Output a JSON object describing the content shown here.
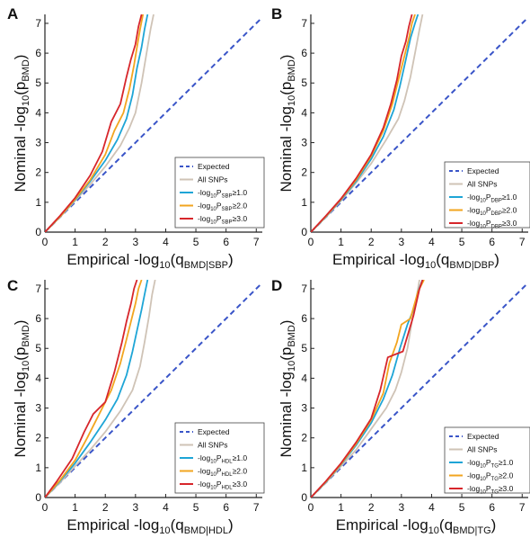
{
  "figure": {
    "background": "#ffffff"
  },
  "series_styles": {
    "Expected": {
      "color": "#3a55c8",
      "dash": true
    },
    "All SNPs": {
      "color": "#cfc3b6"
    },
    "t1": {
      "color": "#1ea5d6"
    },
    "t2": {
      "color": "#f2a51f"
    },
    "t3": {
      "color": "#d7262b"
    }
  },
  "chart_data": [
    {
      "panel": "A",
      "type": "line",
      "xlim": [
        0,
        7.2
      ],
      "ylim": [
        0,
        7.3
      ],
      "xticks": [
        0,
        1,
        2,
        3,
        4,
        5,
        6,
        7
      ],
      "yticks": [
        0,
        1,
        2,
        3,
        4,
        5,
        6,
        7
      ],
      "ylabel": {
        "pre": "Nominal -log",
        "sub1": "10",
        "mid": "(p",
        "sub2": "BMD",
        "post": ")"
      },
      "xlabel": {
        "pre": "Empirical -log",
        "sub1": "10",
        "mid": "(q",
        "sub2": "BMD|SBP",
        "post": ")"
      },
      "legend": {
        "position": "lower-right",
        "items": [
          {
            "key": "Expected",
            "text": "Expected"
          },
          {
            "key": "All SNPs",
            "text": "All SNPs"
          },
          {
            "key": "t1",
            "pre": "-log",
            "sub1": "10",
            "mid": "P",
            "sub2": "SBP",
            "post": "≥1.0"
          },
          {
            "key": "t2",
            "pre": "-log",
            "sub1": "10",
            "mid": "P",
            "sub2": "SBP",
            "post": "≥2.0"
          },
          {
            "key": "t3",
            "pre": "-log",
            "sub1": "10",
            "mid": "P",
            "sub2": "SBP",
            "post": "≥3.0"
          }
        ]
      },
      "series": [
        {
          "key": "Expected",
          "x": [
            0,
            7.2
          ],
          "y": [
            0,
            7.2
          ]
        },
        {
          "key": "All SNPs",
          "x": [
            0,
            0.5,
            1.0,
            1.5,
            2.0,
            2.5,
            2.8,
            3.0,
            3.2,
            3.35,
            3.5,
            3.6
          ],
          "y": [
            0,
            0.5,
            1.05,
            1.6,
            2.2,
            2.9,
            3.5,
            4.0,
            5.0,
            5.9,
            6.8,
            7.3
          ]
        },
        {
          "key": "t1",
          "x": [
            0,
            0.5,
            1.0,
            1.5,
            2.0,
            2.4,
            2.7,
            2.9,
            3.05,
            3.2,
            3.3,
            3.4
          ],
          "y": [
            0,
            0.52,
            1.08,
            1.7,
            2.4,
            3.1,
            3.8,
            4.6,
            5.5,
            6.2,
            6.8,
            7.3
          ]
        },
        {
          "key": "t2",
          "x": [
            0,
            0.5,
            1.0,
            1.5,
            2.0,
            2.3,
            2.6,
            2.8,
            2.95,
            3.05,
            3.15,
            3.25
          ],
          "y": [
            0,
            0.52,
            1.1,
            1.75,
            2.6,
            3.4,
            4.0,
            4.8,
            5.6,
            6.2,
            6.8,
            7.3
          ]
        },
        {
          "key": "t3",
          "x": [
            0,
            0.5,
            1.0,
            1.5,
            1.9,
            2.2,
            2.5,
            2.7,
            2.85,
            3.0,
            3.1,
            3.2
          ],
          "y": [
            0,
            0.55,
            1.15,
            1.9,
            2.7,
            3.7,
            4.3,
            5.2,
            5.8,
            6.3,
            6.9,
            7.3
          ]
        }
      ]
    },
    {
      "panel": "B",
      "type": "line",
      "xlim": [
        0,
        7.2
      ],
      "ylim": [
        0,
        7.3
      ],
      "xticks": [
        0,
        1,
        2,
        3,
        4,
        5,
        6,
        7
      ],
      "yticks": [
        0,
        1,
        2,
        3,
        4,
        5,
        6,
        7
      ],
      "ylabel": {
        "pre": "Nominal -log",
        "sub1": "10",
        "mid": "(p",
        "sub2": "BMD",
        "post": ")"
      },
      "xlabel": {
        "pre": "Empirical -log",
        "sub1": "10",
        "mid": "(q",
        "sub2": "BMD|DBP",
        "post": ")"
      },
      "legend": {
        "position": "lower-right",
        "items": [
          {
            "key": "Expected",
            "text": "Expected"
          },
          {
            "key": "All SNPs",
            "text": "All SNPs"
          },
          {
            "key": "t1",
            "pre": "-log",
            "sub1": "10",
            "mid": "P",
            "sub2": "DBP",
            "post": "≥1.0"
          },
          {
            "key": "t2",
            "pre": "-log",
            "sub1": "10",
            "mid": "P",
            "sub2": "DBP",
            "post": "≥2.0"
          },
          {
            "key": "t3",
            "pre": "-log",
            "sub1": "10",
            "mid": "P",
            "sub2": "DBP",
            "post": "≥3.0"
          }
        ]
      },
      "series": [
        {
          "key": "Expected",
          "x": [
            0,
            7.2
          ],
          "y": [
            0,
            7.2
          ]
        },
        {
          "key": "All SNPs",
          "x": [
            0,
            0.5,
            1.0,
            1.5,
            2.0,
            2.5,
            2.9,
            3.1,
            3.3,
            3.45,
            3.6,
            3.7
          ],
          "y": [
            0,
            0.5,
            1.05,
            1.65,
            2.3,
            3.1,
            3.8,
            4.4,
            5.2,
            6.0,
            6.8,
            7.3
          ]
        },
        {
          "key": "t1",
          "x": [
            0,
            0.5,
            1.0,
            1.5,
            2.0,
            2.4,
            2.75,
            2.95,
            3.15,
            3.3,
            3.45,
            3.55
          ],
          "y": [
            0,
            0.52,
            1.08,
            1.7,
            2.45,
            3.2,
            4.1,
            4.9,
            5.8,
            6.5,
            7.0,
            7.3
          ]
        },
        {
          "key": "t2",
          "x": [
            0,
            0.5,
            1.0,
            1.5,
            2.0,
            2.4,
            2.7,
            2.9,
            3.1,
            3.25,
            3.35,
            3.45
          ],
          "y": [
            0,
            0.53,
            1.1,
            1.75,
            2.55,
            3.4,
            4.3,
            5.1,
            5.9,
            6.5,
            7.0,
            7.3
          ]
        },
        {
          "key": "t3",
          "x": [
            0,
            0.5,
            1.0,
            1.5,
            2.0,
            2.4,
            2.65,
            2.85,
            3.0,
            3.15,
            3.25,
            3.35
          ],
          "y": [
            0,
            0.55,
            1.12,
            1.8,
            2.6,
            3.5,
            4.3,
            5.1,
            5.9,
            6.4,
            6.9,
            7.3
          ]
        }
      ]
    },
    {
      "panel": "C",
      "type": "line",
      "xlim": [
        0,
        7.2
      ],
      "ylim": [
        0,
        7.3
      ],
      "xticks": [
        0,
        1,
        2,
        3,
        4,
        5,
        6,
        7
      ],
      "yticks": [
        0,
        1,
        2,
        3,
        4,
        5,
        6,
        7
      ],
      "ylabel": {
        "pre": "Nominal -log",
        "sub1": "10",
        "mid": "(p",
        "sub2": "BMD",
        "post": ")"
      },
      "xlabel": {
        "pre": "Empirical -log",
        "sub1": "10",
        "mid": "(q",
        "sub2": "BMD|HDL",
        "post": ")"
      },
      "legend": {
        "position": "lower-right",
        "items": [
          {
            "key": "Expected",
            "text": "Expected"
          },
          {
            "key": "All SNPs",
            "text": "All SNPs"
          },
          {
            "key": "t1",
            "pre": "-log",
            "sub1": "10",
            "mid": "P",
            "sub2": "HDL",
            "post": "≥1.0"
          },
          {
            "key": "t2",
            "pre": "-log",
            "sub1": "10",
            "mid": "P",
            "sub2": "HDL",
            "post": "≥2.0"
          },
          {
            "key": "t3",
            "pre": "-log",
            "sub1": "10",
            "mid": "P",
            "sub2": "HDL",
            "post": "≥3.0"
          }
        ]
      },
      "series": [
        {
          "key": "Expected",
          "x": [
            0,
            7.2
          ],
          "y": [
            0,
            7.2
          ]
        },
        {
          "key": "All SNPs",
          "x": [
            0,
            0.5,
            1.0,
            1.5,
            2.0,
            2.5,
            2.9,
            3.15,
            3.3,
            3.45,
            3.55,
            3.65
          ],
          "y": [
            0,
            0.5,
            1.05,
            1.6,
            2.2,
            2.9,
            3.6,
            4.4,
            5.2,
            6.1,
            6.8,
            7.3
          ]
        },
        {
          "key": "t1",
          "x": [
            0,
            0.5,
            1.0,
            1.5,
            2.0,
            2.4,
            2.7,
            2.9,
            3.05,
            3.2,
            3.3,
            3.4
          ],
          "y": [
            0,
            0.55,
            1.15,
            1.85,
            2.6,
            3.3,
            4.1,
            4.9,
            5.6,
            6.3,
            6.8,
            7.3
          ]
        },
        {
          "key": "t2",
          "x": [
            0,
            0.5,
            1.0,
            1.4,
            1.8,
            2.2,
            2.5,
            2.7,
            2.85,
            3.0,
            3.1,
            3.2
          ],
          "y": [
            0,
            0.58,
            1.25,
            2.0,
            2.8,
            3.6,
            4.5,
            5.3,
            5.9,
            6.5,
            7.0,
            7.3
          ]
        },
        {
          "key": "t3",
          "x": [
            0,
            0.4,
            0.9,
            1.3,
            1.6,
            2.0,
            2.3,
            2.55,
            2.7,
            2.85,
            2.95,
            3.05
          ],
          "y": [
            0,
            0.55,
            1.3,
            2.2,
            2.8,
            3.2,
            4.2,
            5.2,
            5.9,
            6.5,
            7.0,
            7.3
          ]
        }
      ]
    },
    {
      "panel": "D",
      "type": "line",
      "xlim": [
        0,
        7.2
      ],
      "ylim": [
        0,
        7.3
      ],
      "xticks": [
        0,
        1,
        2,
        3,
        4,
        5,
        6,
        7
      ],
      "yticks": [
        0,
        1,
        2,
        3,
        4,
        5,
        6,
        7
      ],
      "ylabel": {
        "pre": "Nominal -log",
        "sub1": "10",
        "mid": "(p",
        "sub2": "BMD",
        "post": ")"
      },
      "xlabel": {
        "pre": "Empirical -log",
        "sub1": "10",
        "mid": "(q",
        "sub2": "BMD|TG",
        "post": ")"
      },
      "legend": {
        "position": "lower-right",
        "items": [
          {
            "key": "Expected",
            "text": "Expected"
          },
          {
            "key": "All SNPs",
            "text": "All SNPs"
          },
          {
            "key": "t1",
            "pre": "-log",
            "sub1": "10",
            "mid": "P",
            "sub2": "TG",
            "post": "≥1.0"
          },
          {
            "key": "t2",
            "pre": "-log",
            "sub1": "10",
            "mid": "P",
            "sub2": "TG",
            "post": "≥2.0"
          },
          {
            "key": "t3",
            "pre": "-log",
            "sub1": "10",
            "mid": "P",
            "sub2": "TG",
            "post": "≥3.0"
          }
        ]
      },
      "series": [
        {
          "key": "Expected",
          "x": [
            0,
            7.2
          ],
          "y": [
            0,
            7.2
          ]
        },
        {
          "key": "All SNPs",
          "x": [
            0,
            0.5,
            1.0,
            1.5,
            2.0,
            2.5,
            2.8,
            3.0,
            3.2,
            3.35,
            3.5,
            3.6
          ],
          "y": [
            0,
            0.5,
            1.05,
            1.6,
            2.3,
            3.0,
            3.6,
            4.2,
            5.0,
            5.9,
            6.7,
            7.3
          ]
        },
        {
          "key": "t1",
          "x": [
            0,
            0.5,
            1.0,
            1.5,
            2.0,
            2.4,
            2.7,
            2.95,
            3.2,
            3.4,
            3.55,
            3.7
          ],
          "y": [
            0,
            0.52,
            1.1,
            1.75,
            2.5,
            3.3,
            4.1,
            5.0,
            5.8,
            6.3,
            6.9,
            7.3
          ]
        },
        {
          "key": "t2",
          "x": [
            0,
            0.5,
            1.0,
            1.5,
            2.0,
            2.4,
            2.6,
            2.85,
            3.0,
            3.3,
            3.55,
            3.75
          ],
          "y": [
            0,
            0.53,
            1.12,
            1.8,
            2.6,
            3.5,
            4.5,
            5.2,
            5.8,
            6.0,
            6.9,
            7.3
          ]
        },
        {
          "key": "t3",
          "x": [
            0,
            0.5,
            1.0,
            1.5,
            2.0,
            2.3,
            2.55,
            2.8,
            3.05,
            3.4,
            3.6,
            3.7
          ],
          "y": [
            0,
            0.55,
            1.15,
            1.85,
            2.65,
            3.6,
            4.7,
            4.8,
            4.9,
            6.1,
            7.0,
            7.3
          ]
        }
      ]
    }
  ]
}
